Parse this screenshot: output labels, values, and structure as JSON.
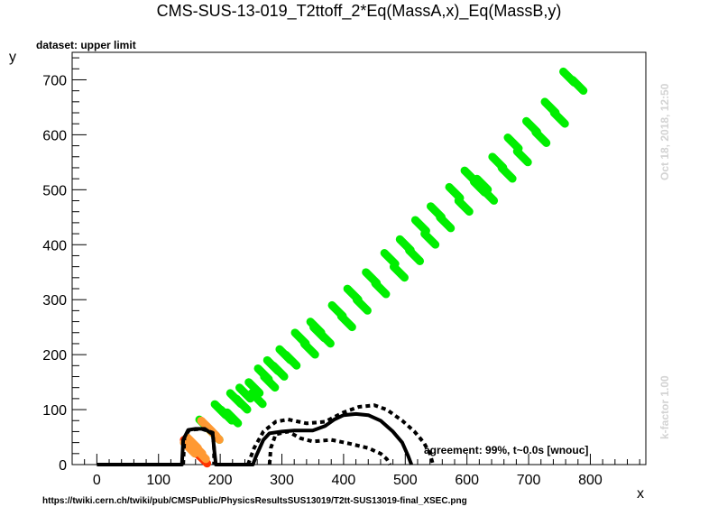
{
  "chart_data": {
    "type": "scatter",
    "title": "CMS-SUS-13-019_T2ttoff_2*Eq(MassA,x)_Eq(MassB,y)",
    "dataset_label": "dataset: upper limit",
    "xlabel": "x",
    "ylabel": "y",
    "xlim": [
      -40,
      890
    ],
    "ylim": [
      0,
      750
    ],
    "xticks": [
      0,
      100,
      200,
      300,
      400,
      500,
      600,
      700,
      800
    ],
    "yticks": [
      0,
      100,
      200,
      300,
      400,
      500,
      600,
      700
    ],
    "grid": false,
    "agreement_text": "agreement: 99%, t~0.0s [wnouc]",
    "side_label_top": "Oct 18, 2018, 12:50",
    "side_label_bottom": "k-factor 1.00",
    "footer": "https://twiki.cern.ch/twiki/pub/CMSPublic/PhysicsResultsSUS13019/T2tt-SUS13019-final_XSEC.png",
    "colors": {
      "allowed": "#00ee00",
      "excluded": "#ff3300",
      "border": "#ff9933",
      "contour": "#000000"
    },
    "series": [
      {
        "color": "#00ee00",
        "points": [
          [
            175,
            72
          ],
          [
            190,
            55
          ],
          [
            200,
            100
          ],
          [
            210,
            90
          ],
          [
            220,
            85
          ],
          [
            225,
            120
          ],
          [
            235,
            110
          ],
          [
            240,
            130
          ],
          [
            255,
            140
          ],
          [
            260,
            120
          ],
          [
            270,
            165
          ],
          [
            280,
            150
          ],
          [
            285,
            180
          ],
          [
            295,
            170
          ],
          [
            305,
            200
          ],
          [
            315,
            190
          ],
          [
            330,
            230
          ],
          [
            345,
            210
          ],
          [
            355,
            250
          ],
          [
            360,
            240
          ],
          [
            370,
            230
          ],
          [
            390,
            280
          ],
          [
            405,
            260
          ],
          [
            415,
            310
          ],
          [
            430,
            290
          ],
          [
            445,
            340
          ],
          [
            460,
            320
          ],
          [
            475,
            375
          ],
          [
            490,
            350
          ],
          [
            500,
            400
          ],
          [
            515,
            380
          ],
          [
            525,
            435
          ],
          [
            540,
            410
          ],
          [
            550,
            460
          ],
          [
            565,
            440
          ],
          [
            580,
            495
          ],
          [
            595,
            470
          ],
          [
            605,
            525
          ],
          [
            620,
            505
          ],
          [
            625,
            510
          ],
          [
            635,
            490
          ],
          [
            650,
            550
          ],
          [
            665,
            530
          ],
          [
            675,
            585
          ],
          [
            690,
            560
          ],
          [
            705,
            615
          ],
          [
            720,
            595
          ],
          [
            735,
            650
          ],
          [
            750,
            630
          ],
          [
            765,
            705
          ],
          [
            780,
            690
          ]
        ]
      },
      {
        "color": "#ff3300",
        "points": [
          [
            150,
            35
          ],
          [
            158,
            25
          ],
          [
            165,
            18
          ],
          [
            170,
            12
          ]
        ]
      },
      {
        "color": "#ff9933",
        "points": [
          [
            150,
            30
          ],
          [
            155,
            40
          ],
          [
            162,
            30
          ],
          [
            168,
            20
          ],
          [
            178,
            70
          ],
          [
            185,
            62
          ],
          [
            190,
            55
          ]
        ]
      }
    ],
    "contours": [
      {
        "style": "solid",
        "points": [
          [
            0,
            0
          ],
          [
            138,
            0
          ],
          [
            140,
            45
          ],
          [
            148,
            63
          ],
          [
            160,
            65
          ],
          [
            175,
            65
          ],
          [
            188,
            55
          ],
          [
            190,
            30
          ],
          [
            193,
            0
          ],
          [
            253,
            0
          ],
          [
            258,
            15
          ],
          [
            270,
            45
          ],
          [
            280,
            57
          ],
          [
            300,
            60
          ],
          [
            320,
            62
          ],
          [
            350,
            62
          ],
          [
            370,
            70
          ],
          [
            385,
            82
          ],
          [
            400,
            90
          ],
          [
            420,
            92
          ],
          [
            440,
            90
          ],
          [
            460,
            80
          ],
          [
            480,
            60
          ],
          [
            495,
            40
          ],
          [
            505,
            15
          ],
          [
            510,
            0
          ]
        ]
      },
      {
        "style": "dotted",
        "points": [
          [
            140,
            0
          ],
          [
            142,
            50
          ],
          [
            150,
            63
          ],
          [
            170,
            65
          ],
          [
            188,
            58
          ],
          [
            190,
            30
          ],
          [
            190,
            0
          ]
        ]
      },
      {
        "style": "dotted",
        "points": [
          [
            245,
            0
          ],
          [
            255,
            30
          ],
          [
            270,
            60
          ],
          [
            290,
            78
          ],
          [
            310,
            82
          ],
          [
            340,
            75
          ],
          [
            370,
            78
          ],
          [
            400,
            95
          ],
          [
            425,
            105
          ],
          [
            450,
            108
          ],
          [
            470,
            100
          ],
          [
            495,
            80
          ],
          [
            515,
            60
          ],
          [
            530,
            40
          ],
          [
            540,
            20
          ],
          [
            545,
            0
          ]
        ]
      },
      {
        "style": "dotted",
        "points": [
          [
            280,
            0
          ],
          [
            282,
            30
          ],
          [
            290,
            55
          ],
          [
            310,
            60
          ],
          [
            330,
            48
          ],
          [
            350,
            42
          ],
          [
            380,
            45
          ],
          [
            410,
            38
          ],
          [
            440,
            30
          ],
          [
            460,
            20
          ],
          [
            470,
            10
          ],
          [
            475,
            0
          ]
        ]
      }
    ]
  }
}
